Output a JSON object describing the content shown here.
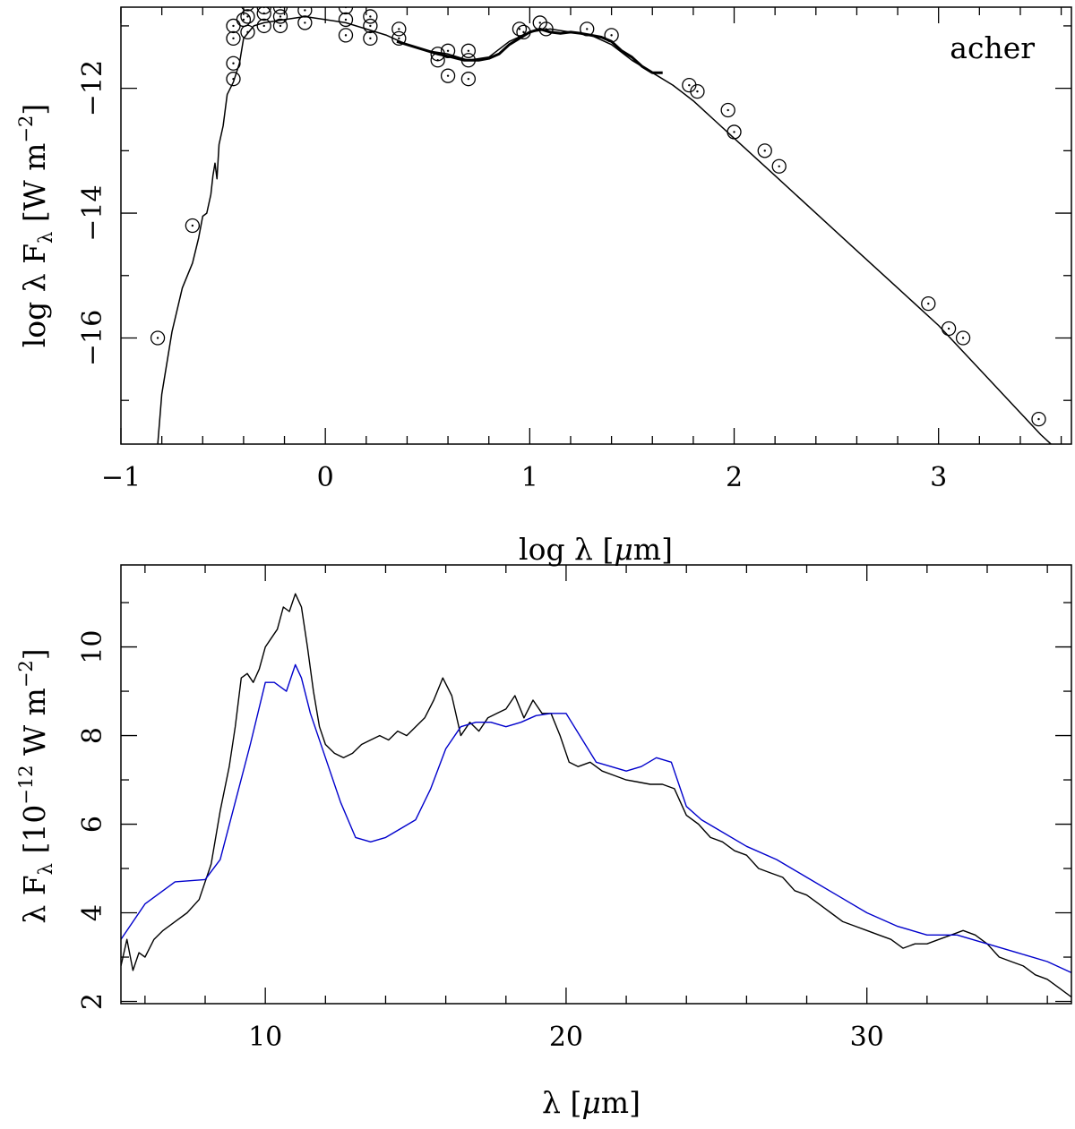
{
  "chart_data": [
    {
      "type": "scatter",
      "title": "",
      "annotation": "acher",
      "xlabel": "log λ [μm]",
      "ylabel": "log λ Fλ [W m⁻²]",
      "xlim": [
        -1,
        3.65
      ],
      "ylim": [
        -17.7,
        -10.7
      ],
      "xticks": [
        -1,
        0,
        1,
        2,
        3
      ],
      "xtick_labels": [
        "−1",
        "0",
        "1",
        "2",
        "3"
      ],
      "yticks": [
        -16,
        -14,
        -12
      ],
      "ytick_labels": [
        "−16",
        "−14",
        "−12"
      ],
      "grid": false,
      "series": [
        {
          "kind": "model-line",
          "color": "#000000",
          "x": [
            -0.82,
            -0.8,
            -0.75,
            -0.7,
            -0.65,
            -0.62,
            -0.6,
            -0.58,
            -0.56,
            -0.55,
            -0.54,
            -0.53,
            -0.52,
            -0.5,
            -0.48,
            -0.45,
            -0.42,
            -0.4,
            -0.35,
            -0.3,
            -0.2,
            -0.1,
            0.0,
            0.1,
            0.2,
            0.3,
            0.4,
            0.5,
            0.6,
            0.7,
            0.8,
            0.9,
            1.0,
            1.1,
            1.2,
            1.3,
            1.4,
            1.5,
            1.6,
            1.7,
            1.8,
            1.9,
            2.0,
            2.2,
            2.4,
            2.6,
            2.8,
            3.0,
            3.2,
            3.4,
            3.5,
            3.6
          ],
          "y": [
            -17.7,
            -16.9,
            -15.9,
            -15.2,
            -14.8,
            -14.4,
            -14.05,
            -14.0,
            -13.7,
            -13.4,
            -13.2,
            -13.45,
            -12.9,
            -12.6,
            -12.1,
            -11.9,
            -11.6,
            -11.2,
            -11.0,
            -10.95,
            -10.9,
            -10.85,
            -10.9,
            -10.95,
            -11.05,
            -11.15,
            -11.3,
            -11.4,
            -11.45,
            -11.55,
            -11.5,
            -11.25,
            -11.1,
            -11.05,
            -11.1,
            -11.15,
            -11.3,
            -11.55,
            -11.75,
            -11.95,
            -12.2,
            -12.5,
            -12.8,
            -13.4,
            -14.0,
            -14.6,
            -15.2,
            -15.8,
            -16.5,
            -17.2,
            -17.55,
            -17.85
          ]
        },
        {
          "kind": "spectrum",
          "color": "#000000",
          "x": [
            0.35,
            0.45,
            0.55,
            0.62,
            0.68,
            0.75,
            0.8,
            0.85,
            0.9,
            0.95,
            1.0,
            1.05,
            1.1,
            1.15,
            1.2,
            1.25,
            1.3,
            1.35,
            1.4,
            1.45,
            1.5,
            1.55,
            1.6,
            1.65
          ],
          "y": [
            -11.25,
            -11.35,
            -11.45,
            -11.5,
            -11.55,
            -11.55,
            -11.52,
            -11.45,
            -11.3,
            -11.2,
            -11.1,
            -11.05,
            -11.1,
            -11.12,
            -11.1,
            -11.12,
            -11.15,
            -11.18,
            -11.25,
            -11.4,
            -11.5,
            -11.65,
            -11.75,
            -11.75
          ]
        },
        {
          "kind": "photometry",
          "marker": "open-circle",
          "color": "#000000",
          "points": [
            [
              -0.82,
              -16.0
            ],
            [
              -0.65,
              -14.2
            ],
            [
              -0.45,
              -11.0
            ],
            [
              -0.45,
              -11.2
            ],
            [
              -0.45,
              -11.6
            ],
            [
              -0.45,
              -11.85
            ],
            [
              -0.4,
              -10.9
            ],
            [
              -0.38,
              -10.65
            ],
            [
              -0.38,
              -10.85
            ],
            [
              -0.38,
              -11.1
            ],
            [
              -0.3,
              -10.55
            ],
            [
              -0.3,
              -10.7
            ],
            [
              -0.3,
              -10.8
            ],
            [
              -0.3,
              -11.0
            ],
            [
              -0.22,
              -10.7
            ],
            [
              -0.22,
              -10.85
            ],
            [
              -0.22,
              -11.0
            ],
            [
              -0.1,
              -10.75
            ],
            [
              -0.1,
              -10.95
            ],
            [
              0.1,
              -10.7
            ],
            [
              0.1,
              -10.9
            ],
            [
              0.1,
              -11.15
            ],
            [
              0.22,
              -10.85
            ],
            [
              0.22,
              -11.0
            ],
            [
              0.22,
              -11.2
            ],
            [
              0.36,
              -11.05
            ],
            [
              0.36,
              -11.2
            ],
            [
              0.55,
              -11.45
            ],
            [
              0.55,
              -11.55
            ],
            [
              0.6,
              -11.4
            ],
            [
              0.6,
              -11.8
            ],
            [
              0.7,
              -11.4
            ],
            [
              0.7,
              -11.55
            ],
            [
              0.7,
              -11.85
            ],
            [
              0.95,
              -11.05
            ],
            [
              0.97,
              -11.1
            ],
            [
              1.05,
              -10.95
            ],
            [
              1.08,
              -11.05
            ],
            [
              1.28,
              -11.05
            ],
            [
              1.4,
              -11.15
            ],
            [
              1.78,
              -11.95
            ],
            [
              1.82,
              -12.05
            ],
            [
              1.97,
              -12.35
            ],
            [
              2.0,
              -12.7
            ],
            [
              2.15,
              -13.0
            ],
            [
              2.22,
              -13.25
            ],
            [
              2.95,
              -15.45
            ],
            [
              3.05,
              -15.85
            ],
            [
              3.12,
              -16.0
            ],
            [
              3.49,
              -17.3
            ]
          ]
        }
      ]
    },
    {
      "type": "line",
      "title": "",
      "xlabel": "λ [μm]",
      "ylabel": "λ Fλ [10⁻¹² W m⁻²]",
      "xlim": [
        5.2,
        36.8
      ],
      "ylim": [
        1.95,
        11.85
      ],
      "xticks": [
        10,
        20,
        30
      ],
      "xtick_labels": [
        "10",
        "20",
        "30"
      ],
      "yticks": [
        2,
        4,
        6,
        8,
        10
      ],
      "ytick_labels": [
        "2",
        "4",
        "6",
        "8",
        "10"
      ],
      "grid": false,
      "series": [
        {
          "kind": "observed",
          "color": "#000000",
          "x": [
            5.2,
            5.4,
            5.6,
            5.8,
            6.0,
            6.3,
            6.6,
            7.0,
            7.4,
            7.8,
            8.2,
            8.5,
            8.8,
            9.0,
            9.2,
            9.4,
            9.6,
            9.8,
            10.0,
            10.2,
            10.4,
            10.6,
            10.8,
            11.0,
            11.2,
            11.4,
            11.6,
            11.8,
            12.0,
            12.3,
            12.6,
            12.9,
            13.2,
            13.5,
            13.8,
            14.1,
            14.4,
            14.7,
            15.0,
            15.3,
            15.6,
            15.9,
            16.2,
            16.5,
            16.8,
            17.1,
            17.4,
            17.7,
            18.0,
            18.3,
            18.6,
            18.9,
            19.2,
            19.5,
            19.8,
            20.1,
            20.4,
            20.8,
            21.2,
            21.6,
            22.0,
            22.4,
            22.8,
            23.2,
            23.6,
            24.0,
            24.4,
            24.8,
            25.2,
            25.6,
            26.0,
            26.4,
            26.8,
            27.2,
            27.6,
            28.0,
            28.4,
            28.8,
            29.2,
            29.6,
            30.0,
            30.4,
            30.8,
            31.2,
            31.6,
            32.0,
            32.4,
            32.8,
            33.2,
            33.6,
            34.0,
            34.4,
            34.8,
            35.2,
            35.6,
            36.0,
            36.4,
            36.8
          ],
          "y": [
            2.8,
            3.4,
            2.7,
            3.1,
            3.0,
            3.4,
            3.6,
            3.8,
            4.0,
            4.3,
            5.1,
            6.3,
            7.3,
            8.2,
            9.3,
            9.4,
            9.2,
            9.5,
            10.0,
            10.2,
            10.4,
            10.9,
            10.8,
            11.2,
            10.9,
            10.0,
            9.0,
            8.2,
            7.8,
            7.6,
            7.5,
            7.6,
            7.8,
            7.9,
            8.0,
            7.9,
            8.1,
            8.0,
            8.2,
            8.4,
            8.8,
            9.3,
            8.9,
            8.0,
            8.3,
            8.1,
            8.4,
            8.5,
            8.6,
            8.9,
            8.4,
            8.8,
            8.5,
            8.5,
            8.0,
            7.4,
            7.3,
            7.4,
            7.2,
            7.1,
            7.0,
            6.95,
            6.9,
            6.9,
            6.8,
            6.2,
            6.0,
            5.7,
            5.6,
            5.4,
            5.3,
            5.0,
            4.9,
            4.8,
            4.5,
            4.4,
            4.2,
            4.0,
            3.8,
            3.7,
            3.6,
            3.5,
            3.4,
            3.2,
            3.3,
            3.3,
            3.4,
            3.5,
            3.6,
            3.5,
            3.3,
            3.0,
            2.9,
            2.8,
            2.6,
            2.5,
            2.3,
            2.1
          ]
        },
        {
          "kind": "model",
          "color": "#0000cc",
          "x": [
            5.2,
            6.0,
            7.0,
            8.0,
            8.5,
            9.0,
            9.5,
            10.0,
            10.3,
            10.7,
            11.0,
            11.2,
            11.5,
            12.0,
            12.5,
            13.0,
            13.5,
            14.0,
            14.5,
            15.0,
            15.5,
            16.0,
            16.5,
            17.0,
            17.5,
            18.0,
            18.5,
            19.0,
            19.5,
            20.0,
            21.0,
            22.0,
            22.5,
            23.0,
            23.5,
            24.0,
            24.5,
            25.0,
            26.0,
            27.0,
            28.0,
            29.0,
            30.0,
            31.0,
            32.0,
            33.0,
            34.0,
            35.0,
            36.0,
            36.8
          ],
          "y": [
            3.4,
            4.2,
            4.7,
            4.75,
            5.2,
            6.5,
            7.8,
            9.2,
            9.2,
            9.0,
            9.6,
            9.3,
            8.5,
            7.5,
            6.5,
            5.7,
            5.6,
            5.7,
            5.9,
            6.1,
            6.8,
            7.7,
            8.2,
            8.3,
            8.3,
            8.2,
            8.3,
            8.45,
            8.5,
            8.5,
            7.4,
            7.2,
            7.3,
            7.5,
            7.4,
            6.4,
            6.1,
            5.9,
            5.5,
            5.2,
            4.8,
            4.4,
            4.0,
            3.7,
            3.5,
            3.5,
            3.3,
            3.1,
            2.9,
            2.65
          ]
        }
      ]
    }
  ]
}
